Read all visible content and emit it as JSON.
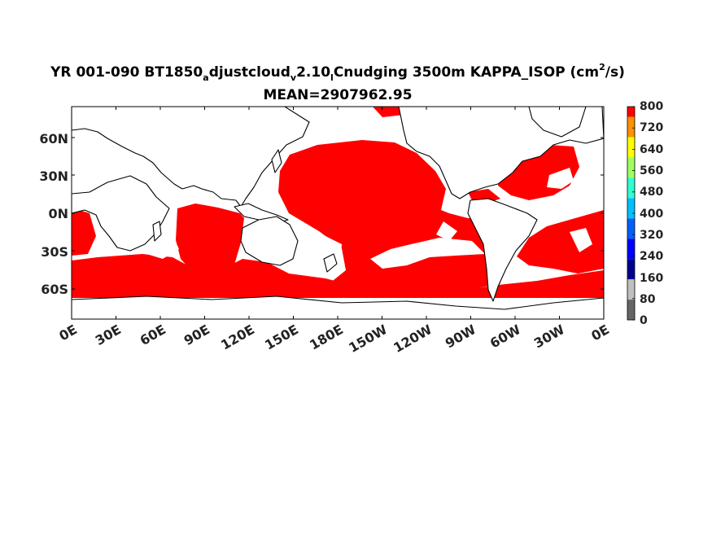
{
  "title": {
    "prefix": "YR 001-090 BT1850",
    "sub1": "a",
    "part2": "djustcloud",
    "sub2": "v",
    "part3": "2.10",
    "sub3": "l",
    "part4": "Cnudging 3500m KAPPA_ISOP (cm",
    "sup": "2",
    "part5": "/s)",
    "mean": "MEAN=2907962.95"
  },
  "map": {
    "lat_labels": [
      "60N",
      "30N",
      "0N",
      "30S",
      "60S"
    ],
    "lon_labels": [
      "0E",
      "30E",
      "60E",
      "90E",
      "120E",
      "150E",
      "180E",
      "150W",
      "120W",
      "90W",
      "60W",
      "30W",
      "0E"
    ]
  },
  "colorbar": {
    "tick_labels": [
      "0",
      "80",
      "160",
      "240",
      "320",
      "400",
      "480",
      "560",
      "640",
      "720",
      "800"
    ],
    "colors": [
      "#666666",
      "#bfbfbf",
      "#000090",
      "#0000ff",
      "#0060ff",
      "#00c0ff",
      "#30ffd0",
      "#a0ff60",
      "#ffff00",
      "#ff9000",
      "#ff0000"
    ]
  },
  "colors": {
    "ocean_fill": "#ff0000",
    "land": "#ffffff",
    "coast": "#000000"
  }
}
